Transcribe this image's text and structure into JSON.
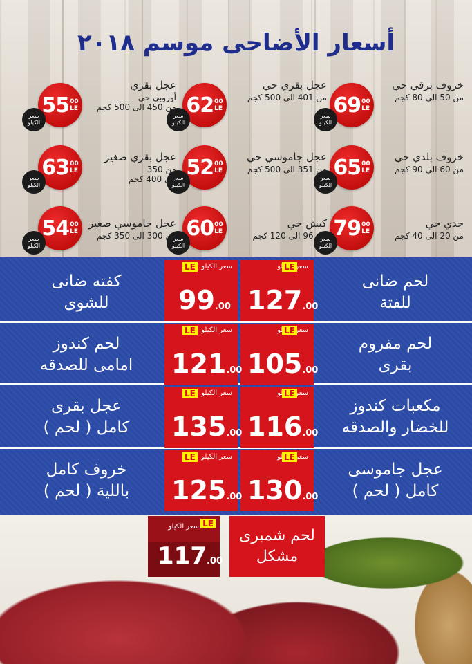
{
  "title": "أسعار الأضاحى موسم ٢٠١٨",
  "badge_label_line1": "سعر",
  "badge_label_line2": "الكيلو",
  "circle_decimals": "00",
  "circle_currency": "LE",
  "animals": [
    {
      "name": "خروف برقي حي",
      "weight": "من 50 الى 80 كجم",
      "price": "69"
    },
    {
      "name": "عجل بقري حي",
      "weight": "من 401 الى 500 كجم",
      "price": "62"
    },
    {
      "name": "عجل بقري",
      "weight": "أوروبي حي\nمن 450 الى 500 كجم",
      "price": "55"
    },
    {
      "name": "خروف بلدي حي",
      "weight": "من 60 الى 90 كجم",
      "price": "65"
    },
    {
      "name": "عجل جاموسي حي",
      "weight": "من 351 الى 500 كجم",
      "price": "52"
    },
    {
      "name": "عجل بقري صغير",
      "weight": "من 350\nالى 400 كجم",
      "price": "63"
    },
    {
      "name": "جدي حي",
      "weight": "من 20 الى 40 كجم",
      "price": "79"
    },
    {
      "name": "كبش حي",
      "weight": "من 96 الى 120 كجم",
      "price": "60"
    },
    {
      "name": "عجل جاموسي صغير",
      "weight": "من 300 الى 350 كجم",
      "price": "54"
    }
  ],
  "box_label": "سعر الكيلو",
  "box_currency": "LE",
  "box_decimals": ".00",
  "rows": [
    {
      "right_text": "لحم ضانى\nللفتة",
      "right_price": "127",
      "left_text": "كفته ضانى\nللشوى",
      "left_price": "99"
    },
    {
      "right_text": "لحم مفروم\nبقرى",
      "right_price": "105",
      "left_text": "لحم كندوز\nامامى للصدقه",
      "left_price": "121"
    },
    {
      "right_text": "مكعبات كندوز\nللخضار والصدقه",
      "right_price": "116",
      "left_text": "عجل بقرى\nكامل ( لحم )",
      "left_price": "135"
    },
    {
      "right_text": "عجل جاموسى\nكامل ( لحم )",
      "right_price": "130",
      "left_text": "خروف كامل\nباللية ( لحم )",
      "left_price": "125"
    }
  ],
  "special": {
    "text": "لحم شمبرى\nمشكل",
    "price": "117",
    "label": "سعر الكيلو",
    "currency": "LE",
    "decimals": ".00"
  }
}
